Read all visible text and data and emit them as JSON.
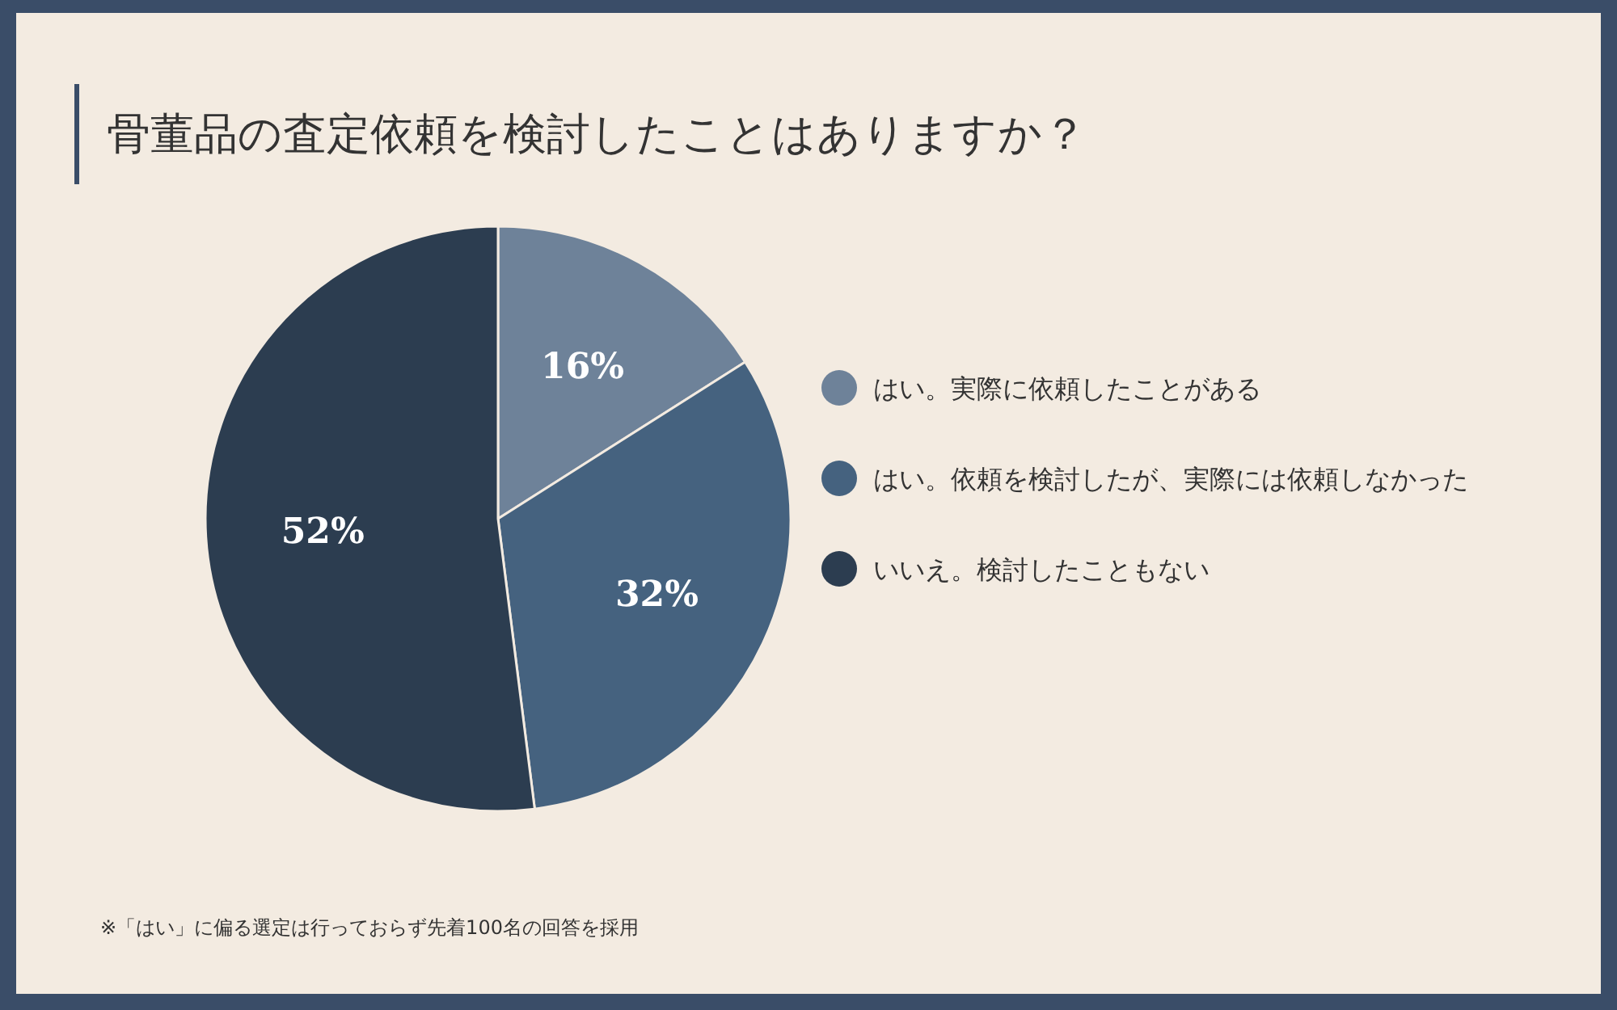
{
  "chart_data": {
    "type": "pie",
    "title": "骨董品の査定依頼を検討したことはありますか？",
    "categories": [
      "はい。実際に依頼したことがある",
      "はい。依頼を検討したが、実際には依頼しなかった",
      "いいえ。検討したこともない"
    ],
    "values": [
      16,
      32,
      52
    ],
    "colors": [
      "#6e8299",
      "#45627f",
      "#2c3d50"
    ],
    "value_labels": [
      "16%",
      "32%",
      "52%"
    ],
    "legend": "right",
    "annotations": [
      "※「はい」に偏る選定は行っておらず先着100名の回答を採用"
    ]
  }
}
